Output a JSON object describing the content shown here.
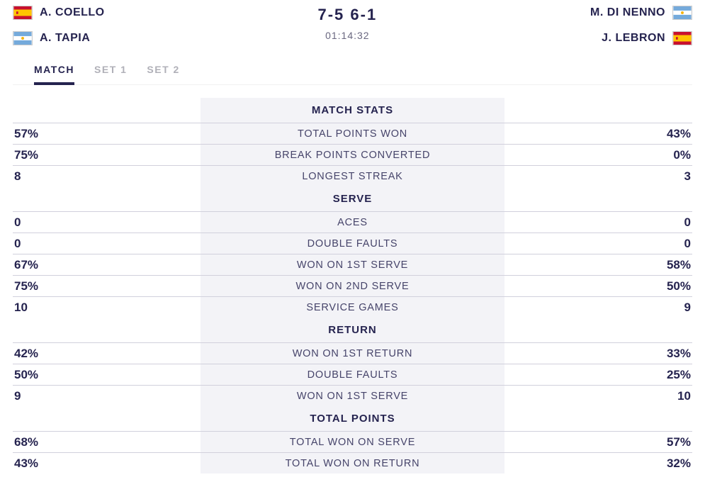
{
  "header": {
    "team_left": {
      "players": [
        {
          "name": "A. COELLO",
          "flag": "es"
        },
        {
          "name": "A. TAPIA",
          "flag": "ar"
        }
      ]
    },
    "team_right": {
      "players": [
        {
          "name": "M. DI NENNO",
          "flag": "ar"
        },
        {
          "name": "J. LEBRON",
          "flag": "es"
        }
      ]
    },
    "score": "7-5 6-1",
    "duration": "01:14:32"
  },
  "tabs": [
    {
      "label": "MATCH",
      "active": true
    },
    {
      "label": "SET 1",
      "active": false
    },
    {
      "label": "SET 2",
      "active": false
    }
  ],
  "sections": [
    {
      "title": "MATCH STATS",
      "rows": [
        {
          "left": "57%",
          "label": "TOTAL POINTS WON",
          "right": "43%"
        },
        {
          "left": "75%",
          "label": "BREAK POINTS CONVERTED",
          "right": "0%"
        },
        {
          "left": "8",
          "label": "LONGEST STREAK",
          "right": "3"
        }
      ]
    },
    {
      "title": "SERVE",
      "rows": [
        {
          "left": "0",
          "label": "ACES",
          "right": "0"
        },
        {
          "left": "0",
          "label": "DOUBLE FAULTS",
          "right": "0"
        },
        {
          "left": "67%",
          "label": "WON ON 1ST SERVE",
          "right": "58%"
        },
        {
          "left": "75%",
          "label": "WON ON 2ND SERVE",
          "right": "50%"
        },
        {
          "left": "10",
          "label": "SERVICE GAMES",
          "right": "9"
        }
      ]
    },
    {
      "title": "RETURN",
      "rows": [
        {
          "left": "42%",
          "label": "WON ON 1ST RETURN",
          "right": "33%"
        },
        {
          "left": "50%",
          "label": "DOUBLE FAULTS",
          "right": "25%"
        },
        {
          "left": "9",
          "label": "WON ON 1ST SERVE",
          "right": "10"
        }
      ]
    },
    {
      "title": "TOTAL POINTS",
      "rows": [
        {
          "left": "68%",
          "label": "TOTAL WON ON SERVE",
          "right": "57%"
        },
        {
          "left": "43%",
          "label": "TOTAL WON ON RETURN",
          "right": "32%"
        }
      ]
    }
  ],
  "flags": {
    "es": "spain-flag",
    "ar": "argentina-flag"
  },
  "style": {
    "text_color": "#25234f",
    "muted_color": "#b0b0b8",
    "band_color": "#f3f3f7",
    "divider_color": "#d1d0dc"
  }
}
